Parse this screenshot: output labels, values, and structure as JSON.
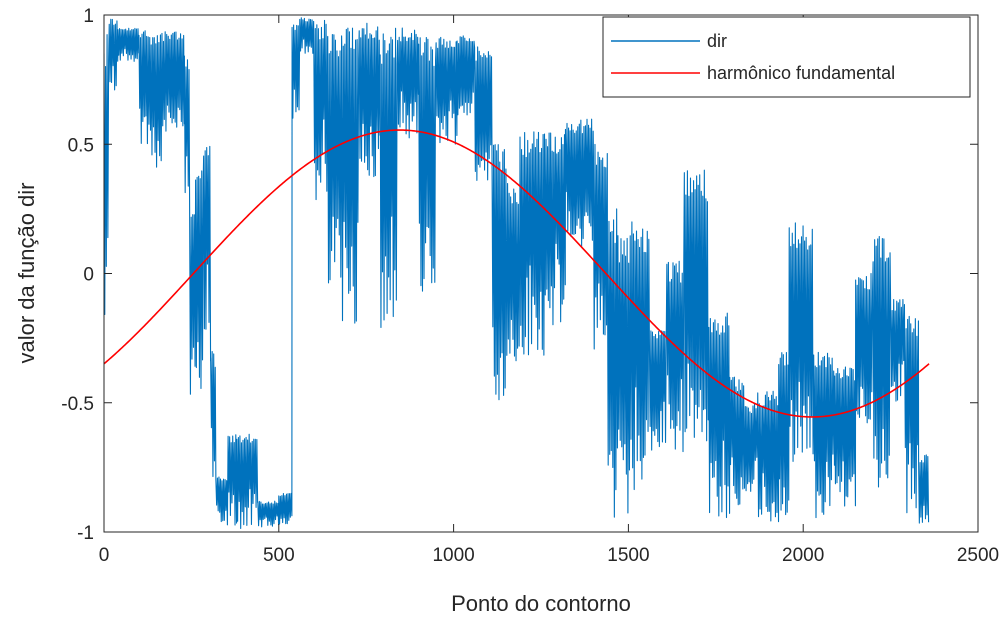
{
  "chart_data": {
    "type": "line",
    "title": "",
    "xlabel": "Ponto do contorno",
    "ylabel": "valor da função dir",
    "xlim": [
      0,
      2500
    ],
    "ylim": [
      -1,
      1
    ],
    "xticks": [
      0,
      500,
      1000,
      1500,
      2000,
      2500
    ],
    "yticks": [
      -1,
      -0.5,
      0,
      0.5,
      1
    ],
    "xtick_labels": [
      "0",
      "500",
      "1000",
      "1500",
      "2000",
      "2500"
    ],
    "ytick_labels": [
      "-1",
      "-0.5",
      "0",
      "0.5",
      "1"
    ],
    "grid": false,
    "box": true,
    "legend_position": "top-right",
    "series": [
      {
        "name": "dir",
        "color": "#0072BD",
        "style": "oscillating",
        "segments": [
          {
            "x0": 0,
            "x1": 15,
            "lo": -0.3,
            "hi": 0.95
          },
          {
            "x0": 15,
            "x1": 40,
            "lo": 0.7,
            "hi": 0.99
          },
          {
            "x0": 40,
            "x1": 100,
            "lo": 0.82,
            "hi": 0.95
          },
          {
            "x0": 100,
            "x1": 135,
            "lo": 0.5,
            "hi": 0.95
          },
          {
            "x0": 135,
            "x1": 175,
            "lo": 0.4,
            "hi": 0.95
          },
          {
            "x0": 175,
            "x1": 230,
            "lo": 0.55,
            "hi": 0.95
          },
          {
            "x0": 230,
            "x1": 245,
            "lo": 0.3,
            "hi": 0.85
          },
          {
            "x0": 245,
            "x1": 262,
            "lo": -0.5,
            "hi": 0.25
          },
          {
            "x0": 262,
            "x1": 285,
            "lo": -0.45,
            "hi": 0.45
          },
          {
            "x0": 285,
            "x1": 305,
            "lo": -0.35,
            "hi": 0.52
          },
          {
            "x0": 305,
            "x1": 320,
            "lo": -0.85,
            "hi": -0.3
          },
          {
            "x0": 320,
            "x1": 355,
            "lo": -0.98,
            "hi": -0.78
          },
          {
            "x0": 355,
            "x1": 380,
            "lo": -0.99,
            "hi": -0.62
          },
          {
            "x0": 380,
            "x1": 440,
            "lo": -0.99,
            "hi": -0.62
          },
          {
            "x0": 440,
            "x1": 500,
            "lo": -0.98,
            "hi": -0.88
          },
          {
            "x0": 500,
            "x1": 538,
            "lo": -0.97,
            "hi": -0.85
          },
          {
            "x0": 538,
            "x1": 560,
            "lo": 0.6,
            "hi": 0.97
          },
          {
            "x0": 560,
            "x1": 600,
            "lo": 0.85,
            "hi": 0.99
          },
          {
            "x0": 600,
            "x1": 640,
            "lo": 0.25,
            "hi": 0.99
          },
          {
            "x0": 640,
            "x1": 680,
            "lo": -0.05,
            "hi": 0.95
          },
          {
            "x0": 680,
            "x1": 730,
            "lo": -0.2,
            "hi": 0.95
          },
          {
            "x0": 730,
            "x1": 790,
            "lo": 0.35,
            "hi": 0.97
          },
          {
            "x0": 790,
            "x1": 840,
            "lo": -0.22,
            "hi": 0.95
          },
          {
            "x0": 840,
            "x1": 900,
            "lo": 0.5,
            "hi": 0.95
          },
          {
            "x0": 900,
            "x1": 950,
            "lo": -0.15,
            "hi": 0.92
          },
          {
            "x0": 950,
            "x1": 1010,
            "lo": 0.5,
            "hi": 0.92
          },
          {
            "x0": 1010,
            "x1": 1060,
            "lo": 0.6,
            "hi": 0.92
          },
          {
            "x0": 1060,
            "x1": 1110,
            "lo": 0.35,
            "hi": 0.88
          },
          {
            "x0": 1110,
            "x1": 1150,
            "lo": -0.5,
            "hi": 0.5
          },
          {
            "x0": 1150,
            "x1": 1190,
            "lo": -0.35,
            "hi": 0.35
          },
          {
            "x0": 1190,
            "x1": 1260,
            "lo": -0.35,
            "hi": 0.55
          },
          {
            "x0": 1260,
            "x1": 1320,
            "lo": -0.2,
            "hi": 0.55
          },
          {
            "x0": 1320,
            "x1": 1400,
            "lo": 0.1,
            "hi": 0.6
          },
          {
            "x0": 1400,
            "x1": 1440,
            "lo": -0.3,
            "hi": 0.5
          },
          {
            "x0": 1440,
            "x1": 1470,
            "lo": -0.98,
            "hi": 0.25
          },
          {
            "x0": 1470,
            "x1": 1510,
            "lo": -0.95,
            "hi": 0.15
          },
          {
            "x0": 1510,
            "x1": 1560,
            "lo": -0.85,
            "hi": 0.2
          },
          {
            "x0": 1560,
            "x1": 1610,
            "lo": -0.7,
            "hi": -0.2
          },
          {
            "x0": 1610,
            "x1": 1660,
            "lo": -0.7,
            "hi": 0.05
          },
          {
            "x0": 1660,
            "x1": 1730,
            "lo": -0.65,
            "hi": 0.4
          },
          {
            "x0": 1730,
            "x1": 1790,
            "lo": -0.95,
            "hi": -0.15
          },
          {
            "x0": 1790,
            "x1": 1830,
            "lo": -0.9,
            "hi": -0.4
          },
          {
            "x0": 1830,
            "x1": 1870,
            "lo": -0.85,
            "hi": -0.5
          },
          {
            "x0": 1870,
            "x1": 1930,
            "lo": -0.98,
            "hi": -0.45
          },
          {
            "x0": 1930,
            "x1": 1960,
            "lo": -0.95,
            "hi": -0.3
          },
          {
            "x0": 1960,
            "x1": 2030,
            "lo": -0.8,
            "hi": 0.2
          },
          {
            "x0": 2030,
            "x1": 2090,
            "lo": -0.95,
            "hi": -0.3
          },
          {
            "x0": 2090,
            "x1": 2150,
            "lo": -0.9,
            "hi": -0.35
          },
          {
            "x0": 2150,
            "x1": 2200,
            "lo": -0.6,
            "hi": 0.0
          },
          {
            "x0": 2200,
            "x1": 2250,
            "lo": -0.85,
            "hi": 0.15
          },
          {
            "x0": 2250,
            "x1": 2290,
            "lo": -0.5,
            "hi": -0.1
          },
          {
            "x0": 2290,
            "x1": 2330,
            "lo": -0.95,
            "hi": -0.15
          },
          {
            "x0": 2330,
            "x1": 2360,
            "lo": -0.98,
            "hi": -0.7
          }
        ]
      },
      {
        "name": "harmônico fundamental",
        "color": "#FF0000",
        "style": "sinusoid",
        "x_start": 0,
        "x_end": 2360,
        "amplitude": 0.555,
        "period": 2360,
        "phase_deg": -39,
        "offset": 0
      }
    ]
  }
}
